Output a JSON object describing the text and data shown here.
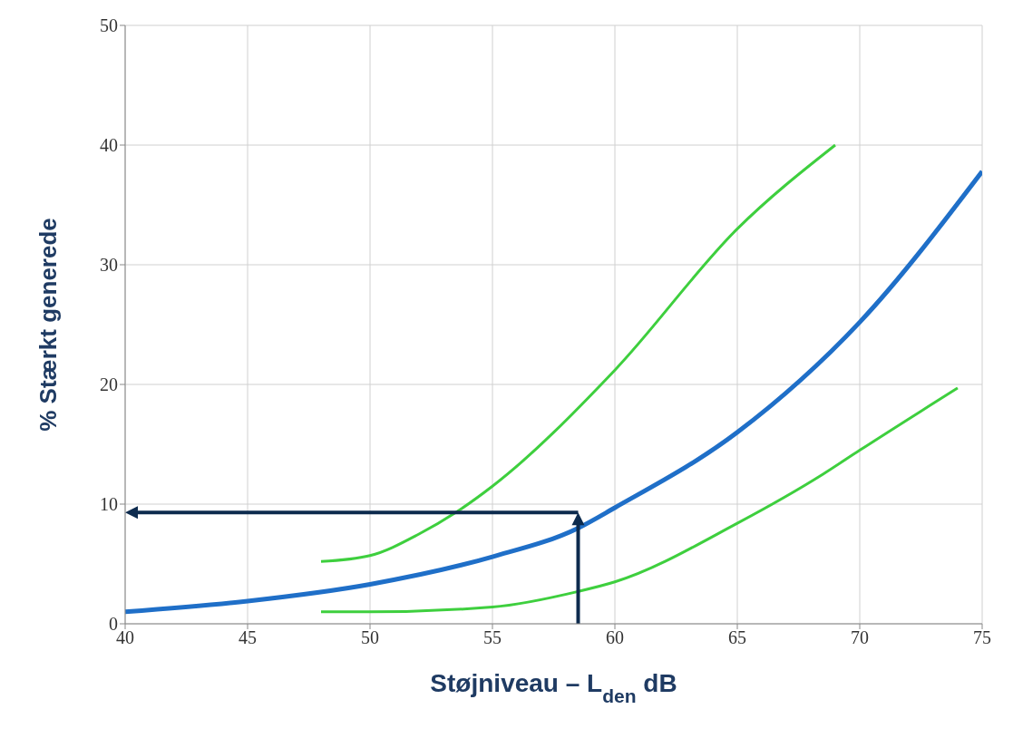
{
  "chart_data": {
    "type": "line",
    "xlabel": "Støjniveau – L$_{den}$ dB",
    "ylabel": "% Stærkt generede",
    "xlim": [
      40,
      75
    ],
    "xticks": [
      40,
      45,
      50,
      55,
      60,
      65,
      70,
      75
    ],
    "ylim": [
      0,
      50
    ],
    "yticks": [
      0,
      10,
      20,
      30,
      40,
      50
    ],
    "grid": true,
    "series": [
      {
        "color": "#1f6fc8",
        "x": [
          40,
          45,
          50,
          55,
          58.5,
          60,
          65,
          70,
          75
        ],
        "values": [
          1,
          1.9,
          3.3,
          5.6,
          8,
          9.7,
          16,
          25.2,
          37.8
        ]
      },
      {
        "color": "#3ecf3e",
        "x": [
          48,
          50,
          52,
          53.5,
          55,
          60,
          65,
          69
        ],
        "values": [
          5.2,
          5.7,
          7.5,
          9.3,
          11.5,
          21.2,
          33,
          40
        ]
      },
      {
        "color": "#3ecf3e",
        "x": [
          48,
          50,
          55,
          58.5,
          60,
          65,
          68.5,
          70,
          74
        ],
        "values": [
          1,
          1,
          1.4,
          2.7,
          3.5,
          8.4,
          12.5,
          14.5,
          19.7
        ]
      }
    ],
    "ref_lines": [
      {
        "axis": "x",
        "value": 58.5,
        "color": "#0d2b4e"
      },
      {
        "axis": "y",
        "value": 9.3,
        "color": "#0d2b4e"
      }
    ]
  }
}
